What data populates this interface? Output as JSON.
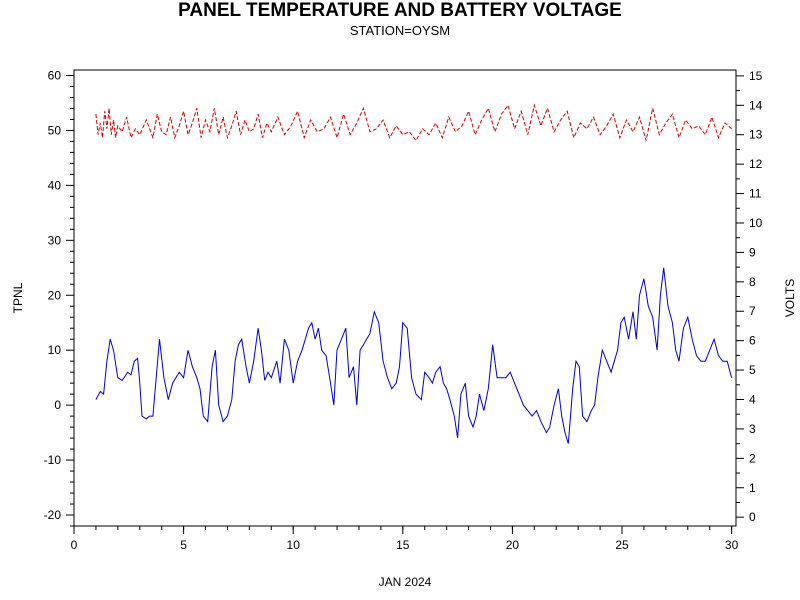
{
  "chart_data": {
    "type": "line",
    "title": "PANEL TEMPERATURE AND BATTERY VOLTAGE",
    "subtitle": "STATION=OYSM",
    "xlabel": "JAN 2024",
    "ylabel_left": "TPNL",
    "ylabel_right": "VOLTS",
    "xlim": [
      0,
      30.2
    ],
    "ylim_left": [
      -22,
      61
    ],
    "ylim_right": [
      -0.3,
      15.2
    ],
    "x_ticks": [
      0,
      5,
      10,
      15,
      20,
      25,
      30
    ],
    "y_ticks_left": [
      -20,
      -10,
      0,
      10,
      20,
      30,
      40,
      50,
      60
    ],
    "y_ticks_right": [
      0,
      1,
      2,
      3,
      4,
      5,
      6,
      7,
      8,
      9,
      10,
      11,
      12,
      13,
      14,
      15
    ],
    "grid": false,
    "series": [
      {
        "axis": "left",
        "color": "#0000cc",
        "style": "solid",
        "x": [
          1.0,
          1.2,
          1.35,
          1.5,
          1.65,
          1.8,
          2.0,
          2.2,
          2.45,
          2.6,
          2.75,
          2.9,
          3.0,
          3.1,
          3.3,
          3.45,
          3.6,
          3.75,
          3.9,
          4.1,
          4.3,
          4.5,
          4.65,
          4.8,
          5.0,
          5.2,
          5.4,
          5.6,
          5.75,
          5.9,
          6.1,
          6.3,
          6.45,
          6.6,
          6.8,
          7.0,
          7.2,
          7.35,
          7.5,
          7.65,
          7.85,
          8.0,
          8.2,
          8.4,
          8.55,
          8.7,
          8.85,
          9.0,
          9.25,
          9.4,
          9.6,
          9.8,
          10.0,
          10.2,
          10.4,
          10.55,
          10.7,
          10.85,
          11.0,
          11.15,
          11.3,
          11.5,
          11.7,
          11.85,
          12.0,
          12.2,
          12.4,
          12.55,
          12.75,
          12.9,
          13.05,
          13.2,
          13.35,
          13.5,
          13.7,
          13.9,
          14.1,
          14.3,
          14.5,
          14.7,
          14.85,
          15.0,
          15.2,
          15.4,
          15.6,
          15.85,
          16.0,
          16.2,
          16.35,
          16.5,
          16.7,
          16.85,
          17.0,
          17.15,
          17.35,
          17.5,
          17.65,
          17.85,
          18.0,
          18.2,
          18.35,
          18.5,
          18.7,
          18.9,
          19.1,
          19.3,
          19.5,
          19.7,
          19.9,
          20.1,
          20.3,
          20.5,
          20.7,
          20.9,
          21.1,
          21.3,
          21.55,
          21.7,
          21.9,
          22.1,
          22.25,
          22.4,
          22.55,
          22.75,
          22.9,
          23.05,
          23.2,
          23.4,
          23.6,
          23.75,
          23.9,
          24.1,
          24.3,
          24.5,
          24.65,
          24.8,
          24.95,
          25.1,
          25.3,
          25.5,
          25.65,
          25.8,
          26.0,
          26.2,
          26.4,
          26.6,
          26.75,
          26.9,
          27.1,
          27.3,
          27.45,
          27.6,
          27.8,
          28.0,
          28.2,
          28.4,
          28.6,
          28.8,
          29.0,
          29.2,
          29.4,
          29.6,
          29.8,
          30.0
        ],
        "y": [
          1,
          2.5,
          2,
          8,
          12,
          10,
          5,
          4.5,
          6,
          5.5,
          8,
          8.5,
          4,
          -2,
          -2.5,
          -2,
          -2,
          5,
          12,
          5,
          1,
          4,
          5,
          6,
          5,
          10,
          7,
          5,
          3,
          -2,
          -3,
          7,
          10,
          0,
          -3,
          -2,
          1,
          8,
          11,
          12,
          7,
          4,
          8,
          14,
          10,
          4.5,
          6,
          5,
          8,
          4,
          12,
          10,
          4,
          8,
          10,
          12,
          14,
          15,
          12,
          14,
          10,
          9,
          4,
          0,
          10,
          12,
          14,
          5,
          7,
          0,
          10,
          11,
          12,
          13,
          17,
          15,
          8,
          5,
          3,
          4,
          7,
          15,
          14,
          5,
          2,
          1,
          6,
          5,
          4,
          6,
          7,
          4,
          3,
          1,
          -2,
          -6,
          2,
          4,
          -2,
          -4,
          -2,
          2,
          -1,
          3,
          11,
          5,
          5,
          5,
          6,
          4,
          2,
          0,
          -1,
          -2,
          -1,
          -3,
          -5,
          -4,
          0,
          3,
          -2,
          -5,
          -7,
          3,
          8,
          7,
          -2,
          -3,
          -1,
          0,
          5,
          10,
          8,
          6,
          8,
          10,
          15,
          16,
          12,
          17,
          12,
          20,
          23,
          18,
          16,
          10,
          20,
          25,
          18,
          15,
          10,
          8,
          14,
          16,
          12,
          9,
          8,
          8,
          10,
          12,
          9,
          8,
          8,
          5
        ]
      },
      {
        "axis": "right",
        "color": "#cc0000",
        "style": "dashed",
        "x": [
          1.0,
          1.1,
          1.2,
          1.3,
          1.4,
          1.5,
          1.6,
          1.7,
          1.8,
          1.9,
          2.0,
          2.2,
          2.4,
          2.6,
          2.8,
          3.0,
          3.3,
          3.6,
          3.8,
          4.0,
          4.2,
          4.4,
          4.6,
          4.8,
          5.0,
          5.2,
          5.4,
          5.6,
          5.8,
          6.0,
          6.2,
          6.4,
          6.6,
          6.8,
          7.0,
          7.2,
          7.4,
          7.6,
          7.8,
          8.0,
          8.2,
          8.4,
          8.6,
          8.8,
          9.0,
          9.3,
          9.6,
          9.9,
          10.2,
          10.5,
          10.8,
          11.1,
          11.4,
          11.7,
          12.0,
          12.3,
          12.6,
          12.9,
          13.2,
          13.5,
          13.8,
          14.1,
          14.4,
          14.7,
          15.0,
          15.3,
          15.6,
          15.9,
          16.2,
          16.5,
          16.8,
          17.1,
          17.4,
          17.7,
          18.0,
          18.3,
          18.6,
          18.9,
          19.2,
          19.5,
          19.8,
          20.1,
          20.4,
          20.7,
          21.0,
          21.3,
          21.6,
          21.9,
          22.2,
          22.5,
          22.8,
          23.1,
          23.4,
          23.7,
          24.0,
          24.3,
          24.6,
          24.9,
          25.2,
          25.5,
          25.8,
          26.1,
          26.4,
          26.7,
          27.0,
          27.3,
          27.6,
          27.9,
          28.2,
          28.5,
          28.8,
          29.1,
          29.4,
          29.7,
          30.0
        ],
        "y": [
          13.7,
          13.0,
          13.4,
          12.9,
          13.8,
          13.2,
          13.9,
          13.0,
          13.5,
          12.9,
          13.3,
          13.1,
          13.6,
          12.9,
          13.2,
          13.0,
          13.5,
          12.9,
          13.7,
          13.1,
          13.0,
          13.6,
          12.9,
          13.3,
          13.8,
          13.0,
          13.4,
          13.9,
          12.9,
          13.5,
          13.1,
          13.9,
          13.0,
          13.6,
          12.9,
          13.3,
          13.8,
          13.0,
          13.5,
          13.1,
          13.2,
          13.7,
          12.9,
          13.4,
          13.1,
          13.6,
          13.0,
          13.3,
          13.8,
          12.9,
          13.5,
          13.1,
          13.2,
          13.6,
          12.9,
          13.7,
          13.0,
          13.4,
          13.9,
          13.1,
          13.2,
          13.5,
          12.9,
          13.3,
          13.0,
          13.1,
          12.8,
          13.2,
          13.0,
          13.4,
          12.9,
          13.6,
          13.1,
          13.3,
          13.8,
          13.0,
          13.5,
          13.9,
          13.1,
          13.7,
          14.0,
          13.2,
          13.8,
          13.0,
          14.0,
          13.3,
          13.9,
          13.1,
          13.5,
          13.8,
          12.9,
          13.4,
          13.2,
          13.6,
          13.0,
          13.3,
          13.7,
          12.9,
          13.5,
          13.1,
          13.6,
          12.8,
          13.9,
          13.0,
          13.4,
          13.7,
          12.9,
          13.5,
          13.2,
          13.3,
          13.0,
          13.6,
          12.9,
          13.4,
          13.2
        ]
      }
    ]
  }
}
